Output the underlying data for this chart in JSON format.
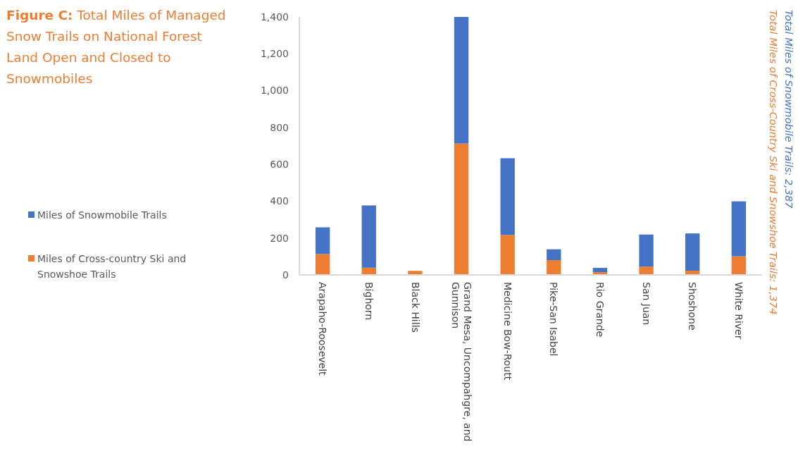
{
  "chart_data": {
    "type": "bar",
    "title": "Figure C: Total Miles of Managed Snow Trails on National Forest Land Open and Closed to Snowmobiles",
    "categories": [
      "Arapaho-Roosevelt",
      "Bighorn",
      "Black Hills",
      "Grand Mesa, Uncompahgre, and Gunnison",
      "Medicine Bow-Routt",
      "Pike-San Isabel",
      "Rio Grande",
      "San Juan",
      "Shoshone",
      "White River"
    ],
    "stacked": true,
    "series": [
      {
        "name": "Miles of Cross-country Ski and Snowshoe Trails",
        "color": "#ed7d31",
        "values": [
          113,
          39,
          22,
          713,
          217,
          80,
          15,
          45,
          23,
          101
        ]
      },
      {
        "name": "Miles of Snowmobile Trails",
        "color": "#4472c4",
        "values": [
          145,
          338,
          0,
          687,
          416,
          59,
          23,
          174,
          202,
          298
        ]
      }
    ],
    "ylim": [
      0,
      1400
    ],
    "yticks": [
      0,
      {
        "value": 200,
        "label": "200"
      },
      {
        "value": 400,
        "label": "400"
      },
      {
        "value": 600,
        "label": "600"
      },
      {
        "value": 800,
        "label": "800"
      },
      {
        "value": 1000,
        "label": "1,000"
      },
      {
        "value": 1200,
        "label": "1,200"
      },
      {
        "value": 1400,
        "label": "1,400"
      }
    ],
    "grid": false,
    "legend": "left",
    "annotations": [
      "Total Miles of Cross-Country Ski and Snowshoe Trails: 1,374",
      "Total Miles of Snowmobile Trails: 2,387"
    ]
  }
}
